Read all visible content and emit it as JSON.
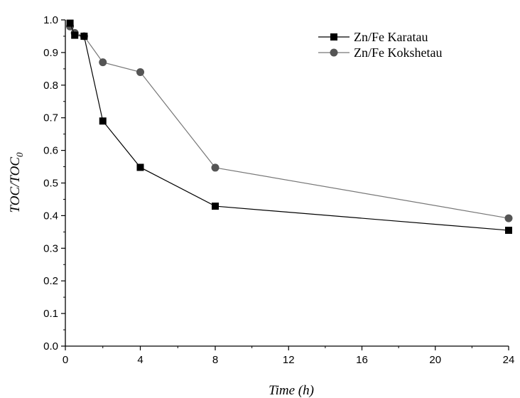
{
  "chart_data": {
    "type": "line",
    "xlabel": "Time (h)",
    "ylabel": {
      "main": "TOC/TOC",
      "sub": "0"
    },
    "xlim": [
      0,
      24
    ],
    "ylim": [
      0.0,
      1.0
    ],
    "x_axis_break": {
      "from": 8,
      "to": 24
    },
    "xticks": [
      0,
      4,
      8,
      12,
      16,
      20,
      24
    ],
    "yticks": [
      0.0,
      0.1,
      0.2,
      0.3,
      0.4,
      0.5,
      0.6,
      0.7,
      0.8,
      0.9,
      1.0
    ],
    "ytick_labels": [
      "0.0",
      "0.1",
      "0.2",
      "0.3",
      "0.4",
      "0.5",
      "0.6",
      "0.7",
      "0.8",
      "0.9",
      "1.0"
    ],
    "grid": false,
    "legend_position": "top-right",
    "series": [
      {
        "name": "Zn/Fe Karatau",
        "marker": "square",
        "color": "#000000",
        "x": [
          0.25,
          0.5,
          1,
          2,
          4,
          8,
          24
        ],
        "y": [
          0.99,
          0.953,
          0.95,
          0.69,
          0.548,
          0.429,
          0.355
        ]
      },
      {
        "name": "Zn/Fe Kokshetau",
        "marker": "circle",
        "color": "#555555",
        "x": [
          0.25,
          0.5,
          1,
          2,
          4,
          8,
          24
        ],
        "y": [
          0.98,
          0.96,
          0.95,
          0.87,
          0.84,
          0.547,
          0.392
        ]
      }
    ]
  }
}
